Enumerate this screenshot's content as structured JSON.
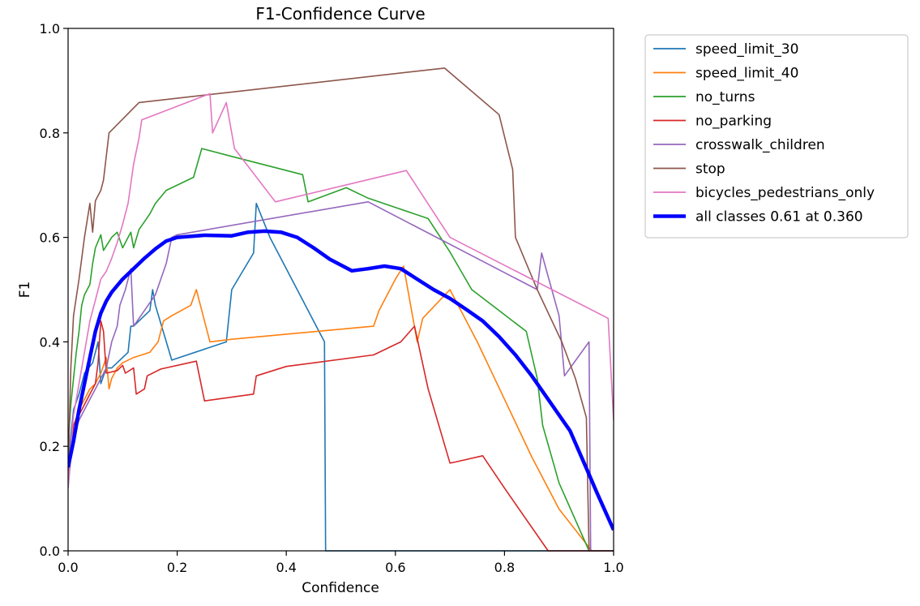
{
  "chart_data": {
    "type": "line",
    "title": "F1-Confidence Curve",
    "xlabel": "Confidence",
    "ylabel": "F1",
    "xlim": [
      0,
      1
    ],
    "ylim": [
      0,
      1
    ],
    "xticks": [
      "0.0",
      "0.2",
      "0.4",
      "0.6",
      "0.8",
      "1.0"
    ],
    "yticks": [
      "0.0",
      "0.2",
      "0.4",
      "0.6",
      "0.8",
      "1.0"
    ],
    "grid": false,
    "legend_position": "outside-upper-right",
    "series": [
      {
        "name": "speed_limit_30",
        "color": "#1f77b4",
        "points": [
          [
            0.0,
            0.15
          ],
          [
            0.005,
            0.22
          ],
          [
            0.01,
            0.27
          ],
          [
            0.02,
            0.3
          ],
          [
            0.03,
            0.34
          ],
          [
            0.045,
            0.36
          ],
          [
            0.055,
            0.4
          ],
          [
            0.06,
            0.32
          ],
          [
            0.07,
            0.35
          ],
          [
            0.08,
            0.35
          ],
          [
            0.1,
            0.37
          ],
          [
            0.11,
            0.38
          ],
          [
            0.115,
            0.43
          ],
          [
            0.12,
            0.43
          ],
          [
            0.13,
            0.44
          ],
          [
            0.15,
            0.46
          ],
          [
            0.155,
            0.5
          ],
          [
            0.16,
            0.47
          ],
          [
            0.19,
            0.365
          ],
          [
            0.29,
            0.4
          ],
          [
            0.3,
            0.5
          ],
          [
            0.34,
            0.57
          ],
          [
            0.345,
            0.665
          ],
          [
            0.37,
            0.6
          ],
          [
            0.47,
            0.4
          ],
          [
            0.472,
            0.0
          ],
          [
            1.0,
            0.0
          ]
        ]
      },
      {
        "name": "speed_limit_40",
        "color": "#ff7f0e",
        "points": [
          [
            0.0,
            0.14
          ],
          [
            0.005,
            0.2
          ],
          [
            0.01,
            0.24
          ],
          [
            0.02,
            0.27
          ],
          [
            0.03,
            0.29
          ],
          [
            0.04,
            0.31
          ],
          [
            0.05,
            0.32
          ],
          [
            0.06,
            0.34
          ],
          [
            0.07,
            0.37
          ],
          [
            0.075,
            0.31
          ],
          [
            0.08,
            0.33
          ],
          [
            0.09,
            0.35
          ],
          [
            0.1,
            0.36
          ],
          [
            0.12,
            0.37
          ],
          [
            0.15,
            0.38
          ],
          [
            0.165,
            0.4
          ],
          [
            0.175,
            0.44
          ],
          [
            0.19,
            0.45
          ],
          [
            0.225,
            0.47
          ],
          [
            0.235,
            0.5
          ],
          [
            0.26,
            0.4
          ],
          [
            0.3,
            0.405
          ],
          [
            0.56,
            0.43
          ],
          [
            0.57,
            0.46
          ],
          [
            0.6,
            0.52
          ],
          [
            0.615,
            0.545
          ],
          [
            0.64,
            0.4
          ],
          [
            0.65,
            0.445
          ],
          [
            0.7,
            0.5
          ],
          [
            0.75,
            0.4
          ],
          [
            0.8,
            0.29
          ],
          [
            0.85,
            0.18
          ],
          [
            0.9,
            0.08
          ],
          [
            0.96,
            0.0
          ],
          [
            1.0,
            0.0
          ]
        ]
      },
      {
        "name": "no_turns",
        "color": "#2ca02c",
        "points": [
          [
            0.0,
            0.2
          ],
          [
            0.005,
            0.28
          ],
          [
            0.01,
            0.33
          ],
          [
            0.015,
            0.38
          ],
          [
            0.02,
            0.42
          ],
          [
            0.025,
            0.47
          ],
          [
            0.03,
            0.49
          ],
          [
            0.04,
            0.51
          ],
          [
            0.045,
            0.55
          ],
          [
            0.05,
            0.58
          ],
          [
            0.06,
            0.605
          ],
          [
            0.065,
            0.575
          ],
          [
            0.08,
            0.6
          ],
          [
            0.09,
            0.61
          ],
          [
            0.1,
            0.58
          ],
          [
            0.11,
            0.6
          ],
          [
            0.115,
            0.61
          ],
          [
            0.12,
            0.58
          ],
          [
            0.13,
            0.615
          ],
          [
            0.14,
            0.63
          ],
          [
            0.15,
            0.645
          ],
          [
            0.16,
            0.665
          ],
          [
            0.18,
            0.69
          ],
          [
            0.21,
            0.705
          ],
          [
            0.23,
            0.715
          ],
          [
            0.245,
            0.77
          ],
          [
            0.3,
            0.755
          ],
          [
            0.43,
            0.72
          ],
          [
            0.44,
            0.668
          ],
          [
            0.51,
            0.695
          ],
          [
            0.55,
            0.675
          ],
          [
            0.66,
            0.636
          ],
          [
            0.7,
            0.572
          ],
          [
            0.74,
            0.5
          ],
          [
            0.84,
            0.42
          ],
          [
            0.86,
            0.33
          ],
          [
            0.87,
            0.24
          ],
          [
            0.9,
            0.13
          ],
          [
            0.955,
            0.0
          ],
          [
            1.0,
            0.0
          ]
        ]
      },
      {
        "name": "no_parking",
        "color": "#d62728",
        "points": [
          [
            0.0,
            0.13
          ],
          [
            0.005,
            0.2
          ],
          [
            0.01,
            0.24
          ],
          [
            0.02,
            0.26
          ],
          [
            0.03,
            0.28
          ],
          [
            0.04,
            0.3
          ],
          [
            0.05,
            0.32
          ],
          [
            0.055,
            0.36
          ],
          [
            0.06,
            0.44
          ],
          [
            0.065,
            0.42
          ],
          [
            0.07,
            0.34
          ],
          [
            0.09,
            0.345
          ],
          [
            0.1,
            0.355
          ],
          [
            0.105,
            0.34
          ],
          [
            0.12,
            0.35
          ],
          [
            0.125,
            0.3
          ],
          [
            0.14,
            0.31
          ],
          [
            0.145,
            0.335
          ],
          [
            0.17,
            0.348
          ],
          [
            0.235,
            0.363
          ],
          [
            0.25,
            0.287
          ],
          [
            0.34,
            0.3
          ],
          [
            0.345,
            0.335
          ],
          [
            0.4,
            0.353
          ],
          [
            0.56,
            0.375
          ],
          [
            0.61,
            0.4
          ],
          [
            0.635,
            0.43
          ],
          [
            0.66,
            0.31
          ],
          [
            0.7,
            0.168
          ],
          [
            0.71,
            0.17
          ],
          [
            0.76,
            0.182
          ],
          [
            0.8,
            0.12
          ],
          [
            0.88,
            0.0
          ],
          [
            1.0,
            0.0
          ]
        ]
      },
      {
        "name": "crosswalk_children",
        "color": "#9467bd",
        "points": [
          [
            0.0,
            0.12
          ],
          [
            0.005,
            0.18
          ],
          [
            0.01,
            0.22
          ],
          [
            0.02,
            0.25
          ],
          [
            0.03,
            0.27
          ],
          [
            0.04,
            0.29
          ],
          [
            0.05,
            0.31
          ],
          [
            0.06,
            0.33
          ],
          [
            0.07,
            0.35
          ],
          [
            0.08,
            0.4
          ],
          [
            0.09,
            0.43
          ],
          [
            0.095,
            0.47
          ],
          [
            0.105,
            0.5
          ],
          [
            0.115,
            0.54
          ],
          [
            0.12,
            0.43
          ],
          [
            0.14,
            0.46
          ],
          [
            0.16,
            0.49
          ],
          [
            0.18,
            0.55
          ],
          [
            0.19,
            0.6
          ],
          [
            0.2,
            0.605
          ],
          [
            0.55,
            0.668
          ],
          [
            0.86,
            0.5
          ],
          [
            0.868,
            0.57
          ],
          [
            0.9,
            0.45
          ],
          [
            0.91,
            0.335
          ],
          [
            0.955,
            0.4
          ],
          [
            0.958,
            0.0
          ],
          [
            1.0,
            0.0
          ]
        ]
      },
      {
        "name": "stop",
        "color": "#8c564b",
        "points": [
          [
            0.0,
            0.15
          ],
          [
            0.005,
            0.35
          ],
          [
            0.01,
            0.45
          ],
          [
            0.02,
            0.52
          ],
          [
            0.03,
            0.6
          ],
          [
            0.04,
            0.665
          ],
          [
            0.045,
            0.61
          ],
          [
            0.05,
            0.67
          ],
          [
            0.06,
            0.69
          ],
          [
            0.065,
            0.71
          ],
          [
            0.07,
            0.755
          ],
          [
            0.075,
            0.8
          ],
          [
            0.13,
            0.858
          ],
          [
            0.69,
            0.924
          ],
          [
            0.79,
            0.835
          ],
          [
            0.815,
            0.73
          ],
          [
            0.82,
            0.6
          ],
          [
            0.86,
            0.5
          ],
          [
            0.905,
            0.4
          ],
          [
            0.93,
            0.33
          ],
          [
            0.95,
            0.255
          ],
          [
            0.955,
            0.0
          ],
          [
            1.0,
            0.0
          ]
        ]
      },
      {
        "name": "bicycles_pedestrians_only",
        "color": "#e377c2",
        "points": [
          [
            0.0,
            0.12
          ],
          [
            0.005,
            0.2
          ],
          [
            0.01,
            0.26
          ],
          [
            0.02,
            0.32
          ],
          [
            0.03,
            0.38
          ],
          [
            0.04,
            0.44
          ],
          [
            0.05,
            0.48
          ],
          [
            0.06,
            0.52
          ],
          [
            0.07,
            0.535
          ],
          [
            0.08,
            0.56
          ],
          [
            0.09,
            0.59
          ],
          [
            0.1,
            0.625
          ],
          [
            0.11,
            0.665
          ],
          [
            0.12,
            0.74
          ],
          [
            0.13,
            0.79
          ],
          [
            0.135,
            0.825
          ],
          [
            0.26,
            0.875
          ],
          [
            0.265,
            0.8
          ],
          [
            0.29,
            0.858
          ],
          [
            0.305,
            0.77
          ],
          [
            0.38,
            0.668
          ],
          [
            0.62,
            0.728
          ],
          [
            0.7,
            0.6
          ],
          [
            0.99,
            0.445
          ],
          [
            1.0,
            0.25
          ]
        ]
      },
      {
        "name": "all classes 0.61 at 0.360",
        "color": "#0000ff",
        "bold": true,
        "points": [
          [
            0.0,
            0.16
          ],
          [
            0.01,
            0.21
          ],
          [
            0.02,
            0.27
          ],
          [
            0.03,
            0.32
          ],
          [
            0.04,
            0.37
          ],
          [
            0.05,
            0.42
          ],
          [
            0.06,
            0.455
          ],
          [
            0.07,
            0.478
          ],
          [
            0.08,
            0.495
          ],
          [
            0.1,
            0.52
          ],
          [
            0.12,
            0.54
          ],
          [
            0.14,
            0.56
          ],
          [
            0.16,
            0.578
          ],
          [
            0.18,
            0.593
          ],
          [
            0.2,
            0.6
          ],
          [
            0.25,
            0.604
          ],
          [
            0.3,
            0.603
          ],
          [
            0.33,
            0.61
          ],
          [
            0.36,
            0.612
          ],
          [
            0.39,
            0.61
          ],
          [
            0.42,
            0.6
          ],
          [
            0.45,
            0.58
          ],
          [
            0.48,
            0.558
          ],
          [
            0.52,
            0.536
          ],
          [
            0.55,
            0.54
          ],
          [
            0.58,
            0.545
          ],
          [
            0.61,
            0.54
          ],
          [
            0.64,
            0.52
          ],
          [
            0.67,
            0.5
          ],
          [
            0.7,
            0.483
          ],
          [
            0.73,
            0.462
          ],
          [
            0.76,
            0.44
          ],
          [
            0.79,
            0.41
          ],
          [
            0.82,
            0.375
          ],
          [
            0.85,
            0.335
          ],
          [
            0.88,
            0.29
          ],
          [
            0.91,
            0.245
          ],
          [
            0.92,
            0.23
          ],
          [
            0.95,
            0.158
          ],
          [
            0.97,
            0.11
          ],
          [
            1.0,
            0.04
          ]
        ]
      }
    ]
  }
}
